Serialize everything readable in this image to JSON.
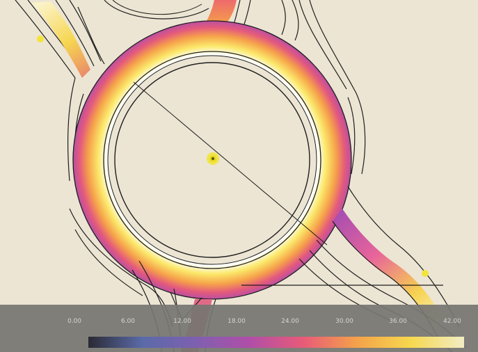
{
  "legend": {
    "ticks": [
      "0.00",
      "6.00",
      "12.00",
      "18.00",
      "24.00",
      "30.00",
      "36.00",
      "42.00"
    ],
    "colors": [
      "#2a2a34",
      "#5a6aa8",
      "#7e60b0",
      "#b04ea8",
      "#e85a78",
      "#f4a24a",
      "#f6d84e",
      "#f2ecc4"
    ]
  },
  "map": {
    "background": "#ece5d3",
    "road_line_color": "#1e1e1e",
    "marker_color": "#f2e43a"
  }
}
